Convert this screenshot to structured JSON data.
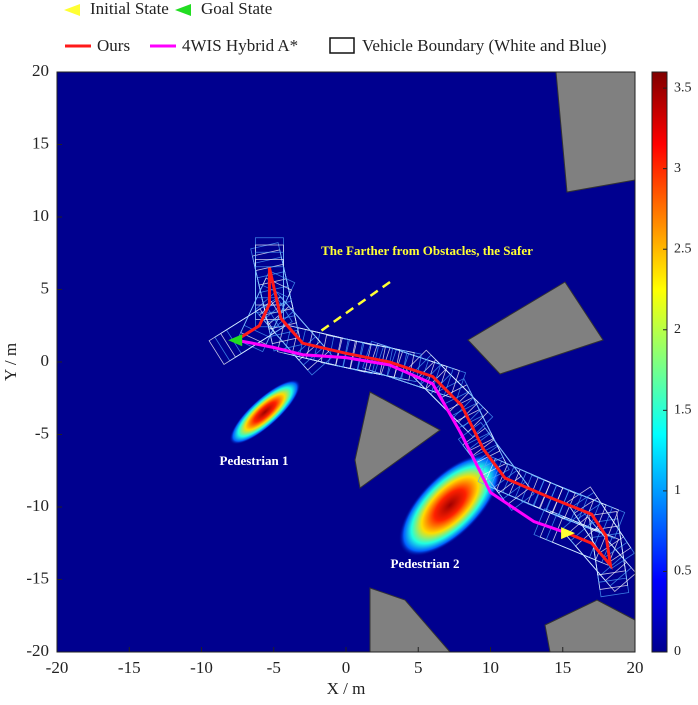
{
  "chart_data": {
    "type": "trajectory",
    "xlabel": "X / m",
    "ylabel": "Y / m",
    "xlim": [
      -20,
      20
    ],
    "ylim": [
      -20,
      20
    ],
    "xticks": [
      -20,
      -15,
      -10,
      -5,
      0,
      5,
      10,
      15,
      20
    ],
    "yticks": [
      -20,
      -15,
      -10,
      -5,
      0,
      5,
      10,
      15,
      20
    ],
    "background": "#00008f",
    "series": [
      {
        "name": "Ours",
        "color": "#ff1a1a",
        "x": [
          15.3,
          17,
          18.3,
          18,
          17,
          14,
          11,
          9.5,
          8,
          6,
          3,
          0,
          -3,
          -4.5,
          -5.3,
          -5.3,
          -6,
          -7.6
        ],
        "y": [
          -11.8,
          -12.5,
          -14,
          -12,
          -10.5,
          -9.3,
          -8,
          -6,
          -3,
          -1,
          0,
          0.6,
          1.3,
          3,
          6.5,
          4,
          2.5,
          1.5
        ]
      },
      {
        "name": "4WIS Hybrid A*",
        "color": "#ff00ff",
        "x": [
          15.3,
          13,
          10,
          8,
          6,
          3,
          0,
          -3,
          -5,
          -6.5,
          -7.6
        ],
        "y": [
          -11.8,
          -11,
          -9,
          -5,
          -1.5,
          -0.2,
          0.3,
          0.5,
          1,
          1.3,
          1.5
        ]
      }
    ],
    "markers": [
      {
        "name": "Initial State",
        "color": "#ffff33",
        "x": 15.3,
        "y": -11.8
      },
      {
        "name": "Goal State",
        "color": "#22dd22",
        "x": -7.6,
        "y": 1.5
      }
    ],
    "boundary_legend": "Vehicle Boundary (White and Blue)",
    "annotations": [
      "The Farther from Obstacles, the Safer",
      "Pedestrian 1",
      "Pedestrian 2"
    ],
    "colorbar": {
      "lim": [
        0,
        3.6
      ],
      "ticks": [
        0,
        0.5,
        1,
        1.5,
        2,
        2.5,
        3,
        3.5
      ]
    }
  }
}
